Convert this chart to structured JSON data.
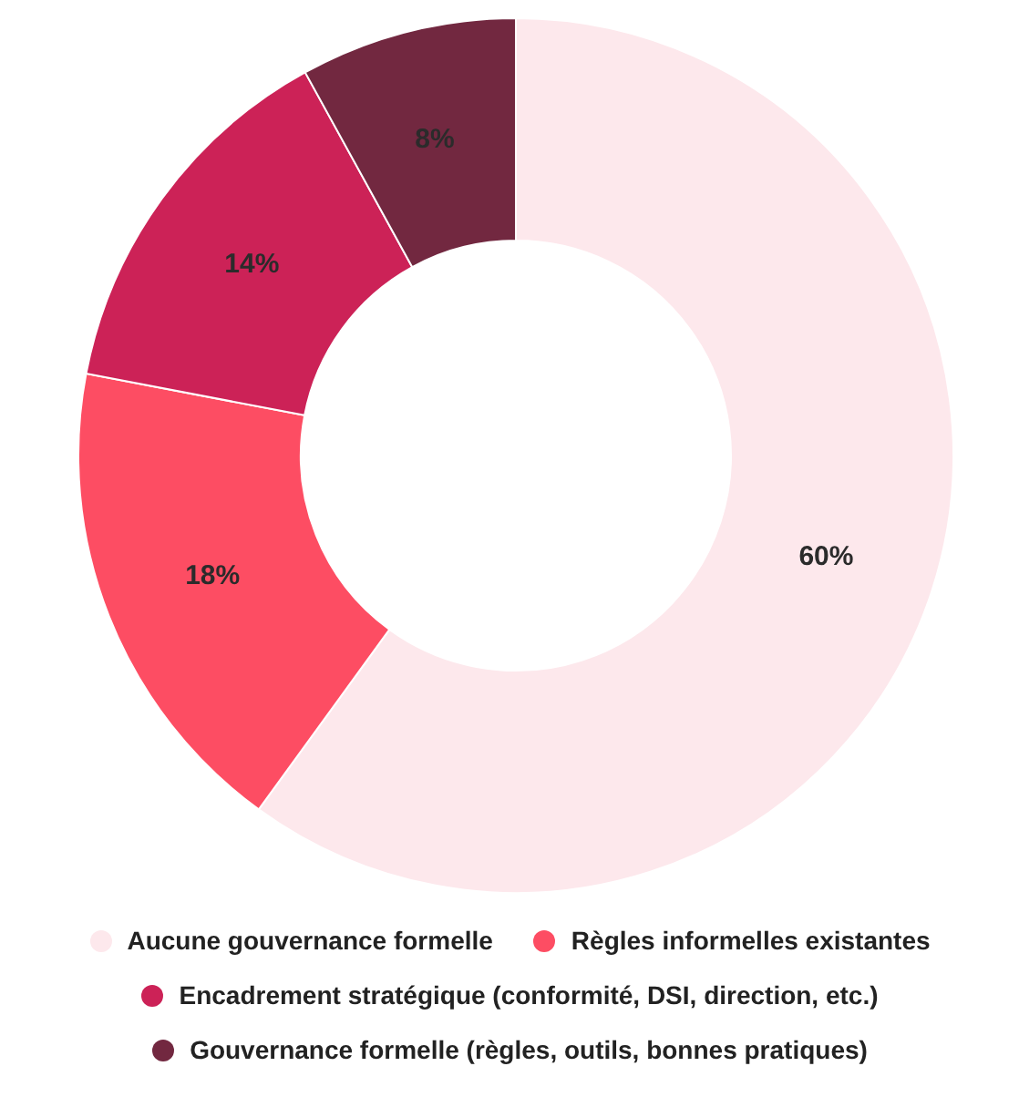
{
  "chart_data": {
    "type": "donut",
    "categories": [
      "Aucune gouvernance formelle",
      "Règles informelles existantes",
      "Encadrement stratégique (conformité, DSI, direction, etc.)",
      "Gouvernance formelle (règles, outils, bonnes pratiques)"
    ],
    "values": [
      60,
      18,
      14,
      8
    ],
    "colors": [
      "#fde8ec",
      "#fd4d63",
      "#cc2257",
      "#722840"
    ],
    "value_labels": [
      "60%",
      "18%",
      "14%",
      "8%"
    ],
    "legend": "bottom"
  }
}
